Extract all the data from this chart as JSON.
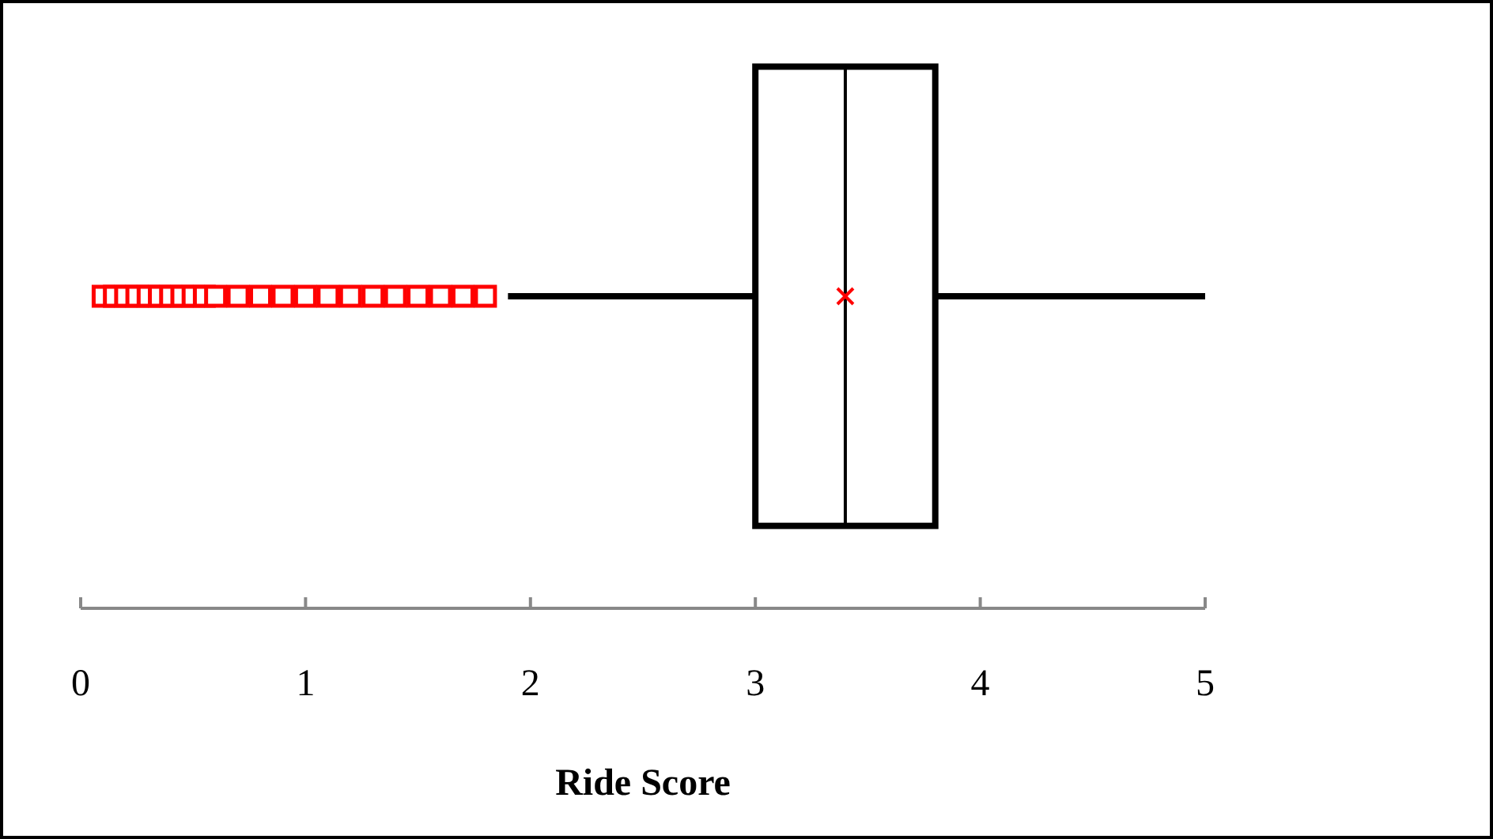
{
  "chart_data": {
    "type": "box",
    "orientation": "horizontal",
    "xlabel": "Ride Score",
    "categories": [
      null
    ],
    "boxes": [
      {
        "low": 1.9,
        "q1": 3.0,
        "median": 3.4,
        "q3": 3.8,
        "high": 5.0,
        "mean": 3.4,
        "outliers": [
          0.1,
          0.15,
          0.2,
          0.25,
          0.3,
          0.35,
          0.4,
          0.45,
          0.5,
          0.55,
          0.6,
          0.7,
          0.8,
          0.9,
          1.0,
          1.1,
          1.2,
          1.3,
          1.4,
          1.5,
          1.6,
          1.7,
          1.8
        ]
      }
    ],
    "xlim": [
      0,
      5
    ],
    "xticks": [
      0,
      1,
      2,
      3,
      4,
      5
    ],
    "grid": false,
    "marker": "square"
  }
}
